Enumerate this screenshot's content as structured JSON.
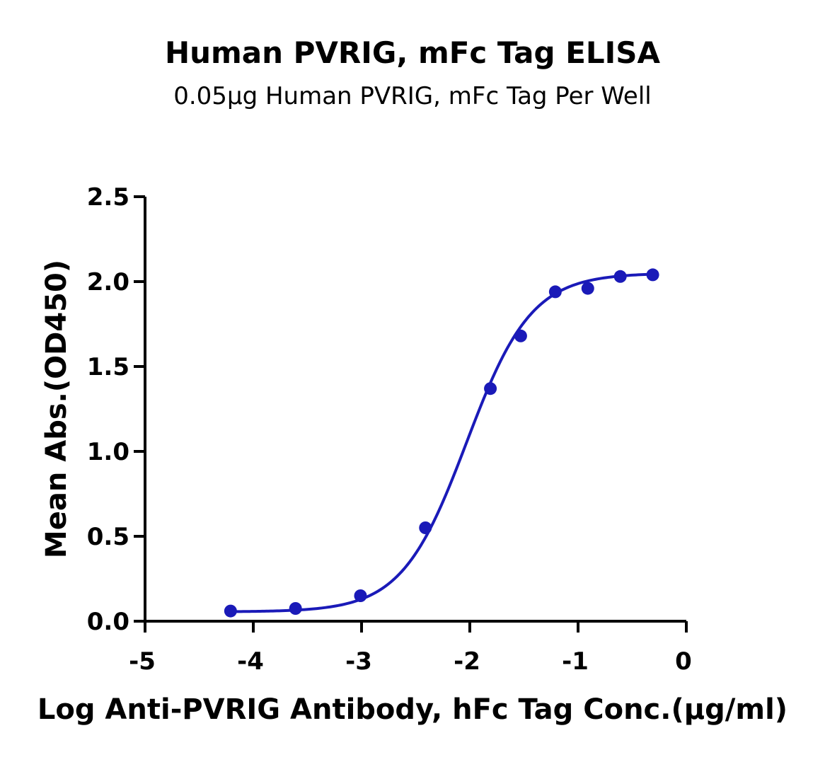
{
  "chart_data": {
    "type": "scatter",
    "title": "Human PVRIG, mFc Tag ELISA",
    "subtitle": "0.05µg Human PVRIG, mFc Tag Per Well",
    "xlabel": "Log Anti-PVRIG Antibody, hFc Tag Conc.(µg/ml)",
    "ylabel": "Mean Abs.(OD450)",
    "xlim": [
      -5,
      0
    ],
    "ylim": [
      0.0,
      2.5
    ],
    "x_ticks": [
      "-5",
      "-4",
      "-3",
      "-2",
      "-1",
      "0"
    ],
    "y_ticks": [
      "0.0",
      "0.5",
      "1.0",
      "1.5",
      "2.0",
      "2.5"
    ],
    "grid": false,
    "series": [
      {
        "color": "#1a1ab8",
        "points": [
          {
            "x": -4.21,
            "y": 0.06
          },
          {
            "x": -3.61,
            "y": 0.075
          },
          {
            "x": -3.01,
            "y": 0.15
          },
          {
            "x": -2.41,
            "y": 0.55
          },
          {
            "x": -1.81,
            "y": 1.37
          },
          {
            "x": -1.53,
            "y": 1.68
          },
          {
            "x": -1.21,
            "y": 1.94
          },
          {
            "x": -0.91,
            "y": 1.96
          },
          {
            "x": -0.61,
            "y": 2.03
          },
          {
            "x": -0.31,
            "y": 2.04
          }
        ],
        "fit": {
          "bottom": 0.055,
          "top": 2.05,
          "logEC50": -2.03,
          "hill": 1.45
        }
      }
    ]
  }
}
